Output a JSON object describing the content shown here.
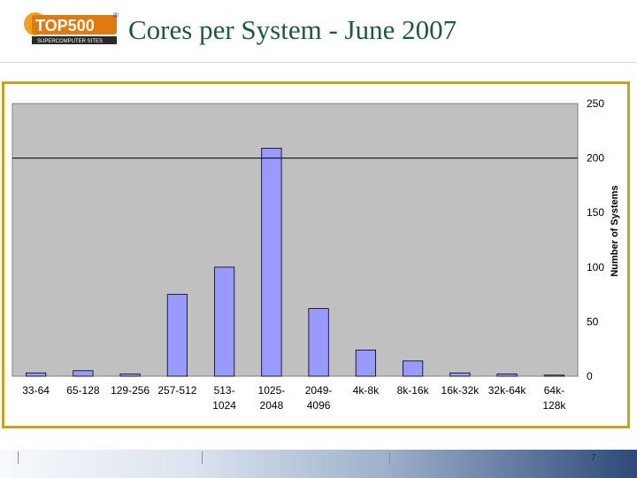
{
  "header": {
    "logo_text": "TOP500",
    "logo_subtext": "SUPERCOMPUTER SITES",
    "logo_mark": "®",
    "title": "Cores per System - June 2007"
  },
  "footer": {
    "page_number": "7"
  },
  "chart_data": {
    "type": "bar",
    "categories": [
      "33-64",
      "65-128",
      "129-256",
      "257-512",
      "513-1024",
      "1025-2048",
      "2049-4096",
      "4k-8k",
      "8k-16k",
      "16k-32k",
      "32k-64k",
      "64k-128k"
    ],
    "category_label_lines": [
      [
        "33-64"
      ],
      [
        "65-128"
      ],
      [
        "129-256"
      ],
      [
        "257-512"
      ],
      [
        "513-",
        "1024"
      ],
      [
        "1025-",
        "2048"
      ],
      [
        "2049-",
        "4096"
      ],
      [
        "4k-8k"
      ],
      [
        "8k-16k"
      ],
      [
        "16k-32k"
      ],
      [
        "32k-64k"
      ],
      [
        "64k-",
        "128k"
      ]
    ],
    "values": [
      3,
      5,
      2,
      75,
      100,
      209,
      62,
      24,
      14,
      3,
      2,
      1
    ],
    "ylabel": "Number of Systems",
    "ylim": [
      0,
      250
    ],
    "yticks": [
      "0",
      "50",
      "100",
      "150",
      "200",
      "250"
    ],
    "y_axis_position": "right",
    "reference_line": 200,
    "grid": false,
    "colors": {
      "bar_fill": "#9999ff",
      "bar_stroke": "#000000",
      "plot_background": "#c0c0c0"
    }
  }
}
